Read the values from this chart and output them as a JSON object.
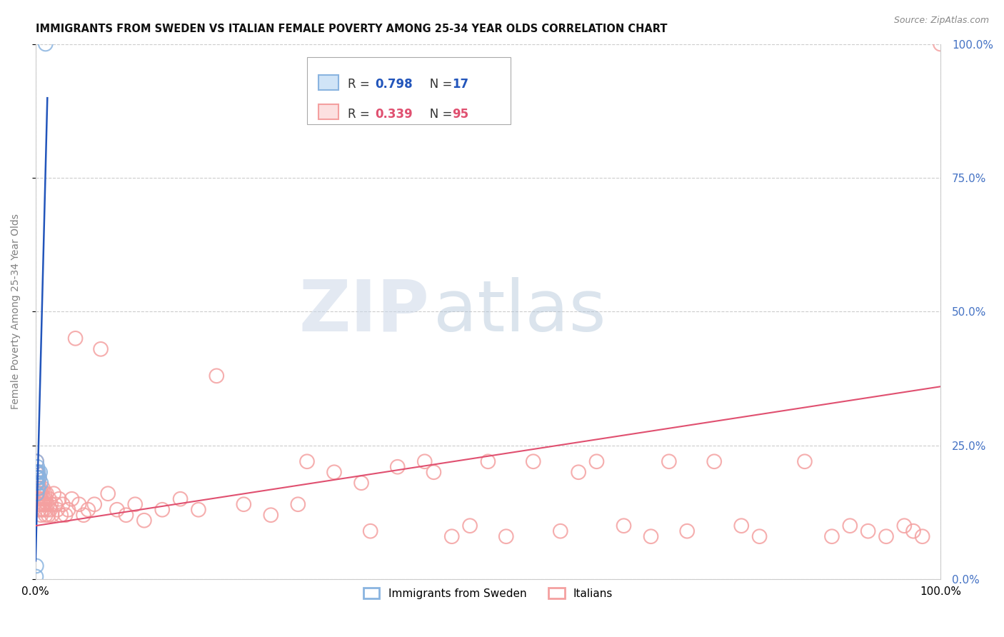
{
  "title": "IMMIGRANTS FROM SWEDEN VS ITALIAN FEMALE POVERTY AMONG 25-34 YEAR OLDS CORRELATION CHART",
  "source": "Source: ZipAtlas.com",
  "ylabel": "Female Poverty Among 25-34 Year Olds",
  "legend_label1": "Immigrants from Sweden",
  "legend_label2": "Italians",
  "legend_r1": "0.798",
  "legend_n1": "17",
  "legend_r2": "0.339",
  "legend_n2": "95",
  "watermark_zip": "ZIP",
  "watermark_atlas": "atlas",
  "blue_scatter_color": "#8ab4e0",
  "pink_scatter_color": "#f4a0a0",
  "blue_line_color": "#2255bb",
  "pink_line_color": "#e05070",
  "right_axis_color": "#4472c4",
  "grid_color": "#cccccc",
  "bg_color": "#ffffff",
  "title_fontsize": 10.5,
  "axis_fontsize": 11,
  "sweden_x": [
    0.0005,
    0.0008,
    0.0008,
    0.001,
    0.001,
    0.0012,
    0.0015,
    0.0015,
    0.002,
    0.002,
    0.0025,
    0.003,
    0.003,
    0.004,
    0.005,
    0.006,
    0.011
  ],
  "sweden_y": [
    0.005,
    0.025,
    0.18,
    0.2,
    0.22,
    0.19,
    0.16,
    0.2,
    0.18,
    0.21,
    0.19,
    0.17,
    0.2,
    0.19,
    0.2,
    0.18,
    1.0
  ],
  "italian_x": [
    0.0005,
    0.001,
    0.001,
    0.001,
    0.0015,
    0.002,
    0.002,
    0.002,
    0.003,
    0.003,
    0.003,
    0.004,
    0.004,
    0.004,
    0.005,
    0.005,
    0.005,
    0.006,
    0.006,
    0.007,
    0.007,
    0.008,
    0.008,
    0.009,
    0.009,
    0.01,
    0.01,
    0.011,
    0.011,
    0.012,
    0.012,
    0.013,
    0.014,
    0.015,
    0.016,
    0.017,
    0.018,
    0.02,
    0.022,
    0.024,
    0.026,
    0.028,
    0.03,
    0.033,
    0.036,
    0.04,
    0.044,
    0.048,
    0.053,
    0.058,
    0.065,
    0.072,
    0.08,
    0.09,
    0.1,
    0.11,
    0.12,
    0.14,
    0.16,
    0.18,
    0.2,
    0.23,
    0.26,
    0.29,
    0.3,
    0.33,
    0.36,
    0.37,
    0.4,
    0.43,
    0.44,
    0.46,
    0.48,
    0.5,
    0.52,
    0.55,
    0.58,
    0.6,
    0.62,
    0.65,
    0.68,
    0.7,
    0.72,
    0.75,
    0.78,
    0.8,
    0.85,
    0.88,
    0.9,
    0.92,
    0.94,
    0.96,
    0.97,
    0.98,
    1.0
  ],
  "italian_y": [
    0.2,
    0.22,
    0.18,
    0.15,
    0.19,
    0.16,
    0.2,
    0.17,
    0.15,
    0.18,
    0.14,
    0.16,
    0.19,
    0.13,
    0.17,
    0.14,
    0.16,
    0.15,
    0.12,
    0.16,
    0.13,
    0.14,
    0.17,
    0.13,
    0.15,
    0.14,
    0.16,
    0.12,
    0.15,
    0.13,
    0.16,
    0.14,
    0.12,
    0.15,
    0.13,
    0.14,
    0.12,
    0.16,
    0.14,
    0.13,
    0.15,
    0.12,
    0.14,
    0.12,
    0.13,
    0.15,
    0.45,
    0.14,
    0.12,
    0.13,
    0.14,
    0.43,
    0.16,
    0.13,
    0.12,
    0.14,
    0.11,
    0.13,
    0.15,
    0.13,
    0.38,
    0.14,
    0.12,
    0.14,
    0.22,
    0.2,
    0.18,
    0.09,
    0.21,
    0.22,
    0.2,
    0.08,
    0.1,
    0.22,
    0.08,
    0.22,
    0.09,
    0.2,
    0.22,
    0.1,
    0.08,
    0.22,
    0.09,
    0.22,
    0.1,
    0.08,
    0.22,
    0.08,
    0.1,
    0.09,
    0.08,
    0.1,
    0.09,
    0.08,
    1.0
  ],
  "xlim": [
    0.0,
    1.0
  ],
  "ylim": [
    0.0,
    1.0
  ]
}
